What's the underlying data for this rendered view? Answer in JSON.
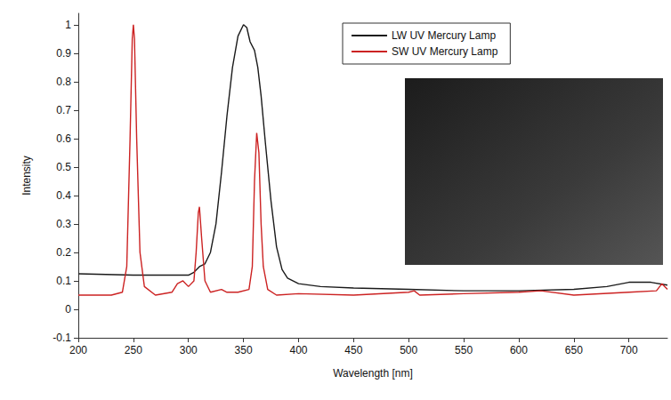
{
  "chart_data": {
    "type": "line",
    "x_label": "Wavelength [nm]",
    "y_label": "Intensity",
    "xlim": [
      200,
      735
    ],
    "xticks": [
      200,
      250,
      300,
      350,
      400,
      450,
      500,
      550,
      600,
      650,
      700
    ],
    "ylim": [
      -0.1,
      1.04
    ],
    "yticks": [
      -0.1,
      0,
      0.1,
      0.2,
      0.3,
      0.4,
      0.5,
      0.6,
      0.7,
      0.8,
      0.9,
      1
    ],
    "grid": false,
    "legend": "top",
    "series": [
      {
        "name": "LW UV Mercury Lamp",
        "color": "#1a1a1a",
        "line_style": "solid",
        "x": [
          200,
          250,
          300,
          305,
          310,
          315,
          320,
          325,
          330,
          335,
          340,
          345,
          350,
          353,
          356,
          360,
          363,
          366,
          370,
          375,
          380,
          385,
          390,
          400,
          420,
          450,
          500,
          550,
          600,
          650,
          680,
          700,
          720,
          735
        ],
        "values": [
          0.125,
          0.12,
          0.12,
          0.13,
          0.15,
          0.16,
          0.2,
          0.3,
          0.48,
          0.68,
          0.85,
          0.96,
          1.0,
          0.99,
          0.94,
          0.91,
          0.85,
          0.75,
          0.58,
          0.38,
          0.22,
          0.14,
          0.11,
          0.09,
          0.08,
          0.075,
          0.07,
          0.065,
          0.065,
          0.07,
          0.08,
          0.095,
          0.095,
          0.085
        ]
      },
      {
        "name": "SW UV Mercury Lamp",
        "color": "#cc2222",
        "line_style": "solid",
        "x": [
          200,
          230,
          240,
          244,
          247,
          249,
          250,
          251,
          253,
          256,
          260,
          270,
          285,
          290,
          295,
          300,
          305,
          307,
          309,
          310,
          312,
          315,
          320,
          330,
          335,
          345,
          355,
          358,
          360,
          362,
          364,
          366,
          368,
          372,
          380,
          400,
          450,
          500,
          505,
          510,
          550,
          600,
          620,
          650,
          700,
          725,
          730,
          735
        ],
        "values": [
          0.05,
          0.05,
          0.06,
          0.15,
          0.6,
          0.95,
          1.0,
          0.95,
          0.6,
          0.2,
          0.08,
          0.05,
          0.06,
          0.09,
          0.1,
          0.08,
          0.1,
          0.2,
          0.34,
          0.36,
          0.25,
          0.1,
          0.06,
          0.07,
          0.06,
          0.06,
          0.07,
          0.15,
          0.45,
          0.62,
          0.55,
          0.3,
          0.15,
          0.07,
          0.05,
          0.055,
          0.05,
          0.06,
          0.065,
          0.05,
          0.055,
          0.06,
          0.065,
          0.05,
          0.06,
          0.065,
          0.09,
          0.07
        ]
      }
    ]
  }
}
